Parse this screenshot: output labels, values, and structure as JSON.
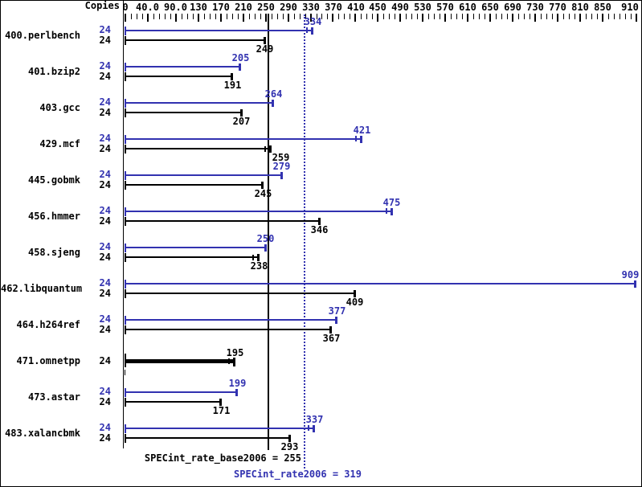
{
  "header": {
    "copies_label": "Copies"
  },
  "chart_data": {
    "type": "bar",
    "orientation": "horizontal",
    "xlabel": "",
    "ylabel": "Copies",
    "axis": {
      "min": 0,
      "max": 910,
      "minor_tick_step": 10,
      "major_ticks": [
        {
          "value": 0,
          "label": "0"
        },
        {
          "value": 40,
          "label": "40.0"
        },
        {
          "value": 90,
          "label": "90.0"
        },
        {
          "value": 130,
          "label": "130"
        },
        {
          "value": 170,
          "label": "170"
        },
        {
          "value": 210,
          "label": "210"
        },
        {
          "value": 250,
          "label": "250"
        },
        {
          "value": 290,
          "label": "290"
        },
        {
          "value": 330,
          "label": "330"
        },
        {
          "value": 370,
          "label": "370"
        },
        {
          "value": 410,
          "label": "410"
        },
        {
          "value": 450,
          "label": "450"
        },
        {
          "value": 490,
          "label": "490"
        },
        {
          "value": 530,
          "label": "530"
        },
        {
          "value": 570,
          "label": "570"
        },
        {
          "value": 610,
          "label": "610"
        },
        {
          "value": 650,
          "label": "650"
        },
        {
          "value": 690,
          "label": "690"
        },
        {
          "value": 730,
          "label": "730"
        },
        {
          "value": 770,
          "label": "770"
        },
        {
          "value": 810,
          "label": "810"
        },
        {
          "value": 850,
          "label": "850"
        },
        {
          "value": 910,
          "label": "910"
        }
      ]
    },
    "series": [
      {
        "name": "400.perlbench",
        "bars": [
          {
            "kind": "peak",
            "copies": "24",
            "value": 334,
            "marker": "double"
          },
          {
            "kind": "base",
            "copies": "24",
            "value": 249,
            "marker": "single"
          }
        ]
      },
      {
        "name": "401.bzip2",
        "bars": [
          {
            "kind": "peak",
            "copies": "24",
            "value": 205,
            "marker": "single"
          },
          {
            "kind": "base",
            "copies": "24",
            "value": 191,
            "marker": "single"
          }
        ]
      },
      {
        "name": "403.gcc",
        "bars": [
          {
            "kind": "peak",
            "copies": "24",
            "value": 264,
            "marker": "single"
          },
          {
            "kind": "base",
            "copies": "24",
            "value": 207,
            "marker": "single"
          }
        ]
      },
      {
        "name": "429.mcf",
        "bars": [
          {
            "kind": "peak",
            "copies": "24",
            "value": 421,
            "marker": "double"
          },
          {
            "kind": "base",
            "copies": "24",
            "value": 259,
            "marker": "double"
          }
        ]
      },
      {
        "name": "445.gobmk",
        "bars": [
          {
            "kind": "peak",
            "copies": "24",
            "value": 279,
            "marker": "single"
          },
          {
            "kind": "base",
            "copies": "24",
            "value": 245,
            "marker": "single"
          }
        ]
      },
      {
        "name": "456.hmmer",
        "bars": [
          {
            "kind": "peak",
            "copies": "24",
            "value": 475,
            "marker": "double"
          },
          {
            "kind": "base",
            "copies": "24",
            "value": 346,
            "marker": "single"
          }
        ]
      },
      {
        "name": "458.sjeng",
        "bars": [
          {
            "kind": "peak",
            "copies": "24",
            "value": 250,
            "marker": "single"
          },
          {
            "kind": "base",
            "copies": "24",
            "value": 238,
            "marker": "double"
          }
        ]
      },
      {
        "name": "462.libquantum",
        "bars": [
          {
            "kind": "peak",
            "copies": "24",
            "value": 909,
            "marker": "single"
          },
          {
            "kind": "base",
            "copies": "24",
            "value": 409,
            "marker": "single"
          }
        ]
      },
      {
        "name": "464.h264ref",
        "bars": [
          {
            "kind": "peak",
            "copies": "24",
            "value": 377,
            "marker": "single"
          },
          {
            "kind": "base",
            "copies": "24",
            "value": 367,
            "marker": "single"
          }
        ]
      },
      {
        "name": "471.omnetpp",
        "bars": [
          {
            "kind": "merged",
            "copies": "24",
            "value": 195,
            "marker": "double"
          }
        ]
      },
      {
        "name": "473.astar",
        "bars": [
          {
            "kind": "peak",
            "copies": "24",
            "value": 199,
            "marker": "single"
          },
          {
            "kind": "base",
            "copies": "24",
            "value": 171,
            "marker": "single"
          }
        ]
      },
      {
        "name": "483.xalancbmk",
        "bars": [
          {
            "kind": "peak",
            "copies": "24",
            "value": 337,
            "marker": "double"
          },
          {
            "kind": "base",
            "copies": "24",
            "value": 293,
            "marker": "single"
          }
        ]
      }
    ],
    "reference_lines": [
      {
        "label": "SPECint_rate_base2006 = 255",
        "value": 255,
        "style": "solid",
        "color": "#000000"
      },
      {
        "label": "SPECint_rate2006 = 319",
        "value": 319,
        "style": "dotted",
        "color": "#3232b0"
      }
    ],
    "colors": {
      "peak": "#3232b0",
      "base": "#000000",
      "background": "#ffffff"
    }
  }
}
